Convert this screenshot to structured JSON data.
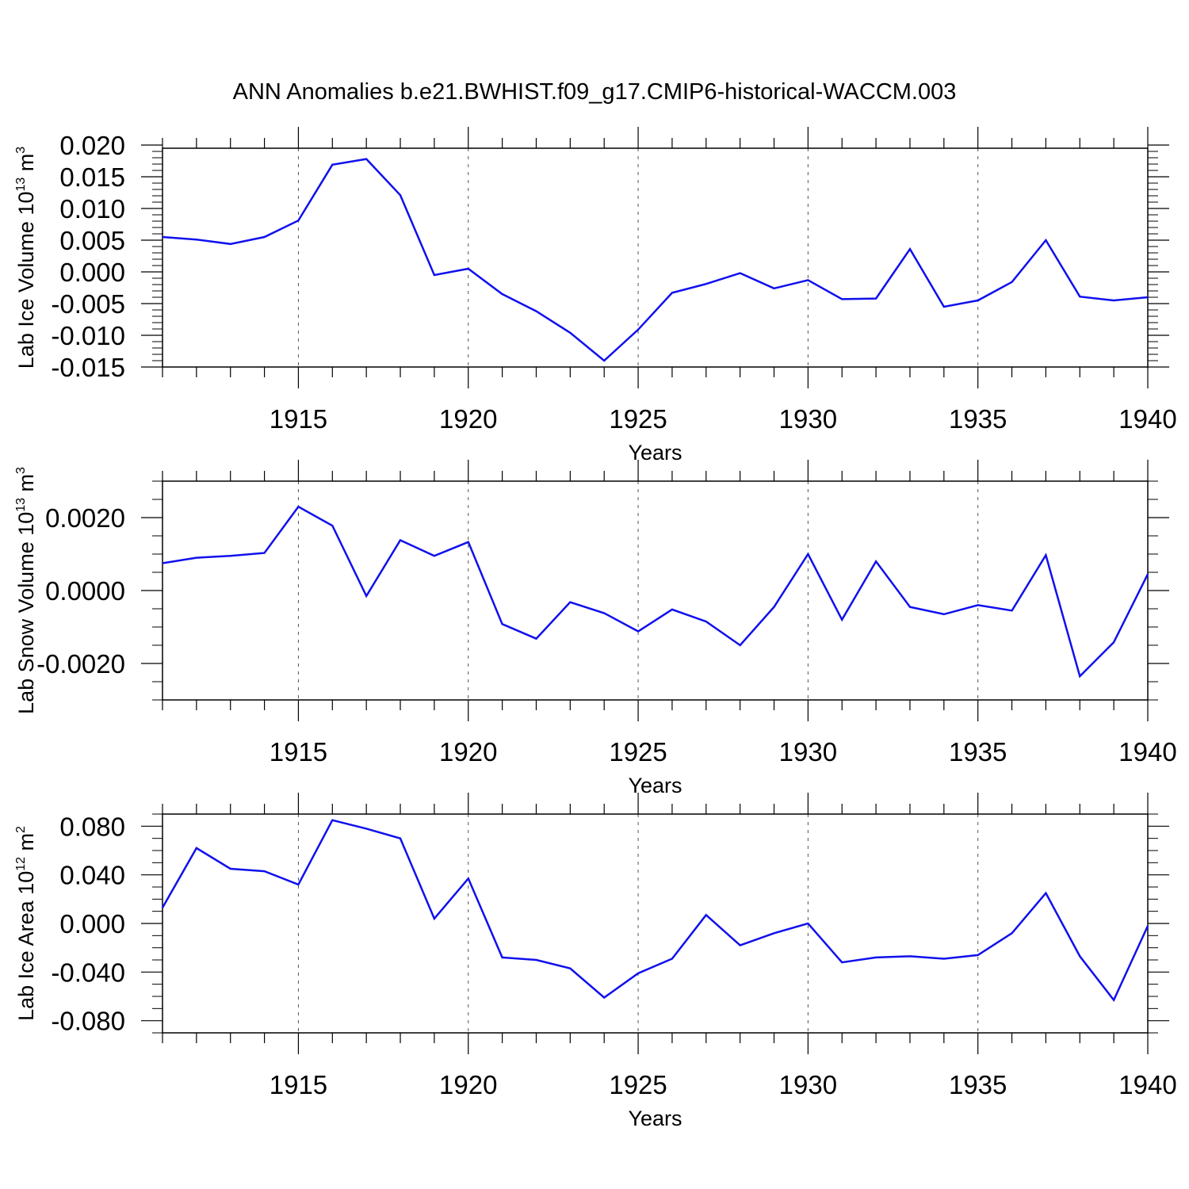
{
  "title": "ANN Anomalies b.e21.BWHIST.f09_g17.CMIP6-historical-WACCM.003",
  "colors": {
    "line": "#1010ee",
    "axis": "#000000",
    "grid": "#555555"
  },
  "chart_data": [
    {
      "type": "line",
      "xlabel": "Years",
      "ylabel": {
        "text": "Lab Ice Volume 10",
        "exp": "13",
        "unit": "m",
        "unit_exp": "3"
      },
      "xlim": [
        1911,
        1940
      ],
      "ylim": [
        -0.015,
        0.0195
      ],
      "x_ticks": [
        1915,
        1920,
        1925,
        1930,
        1935,
        1940
      ],
      "y_ticks": [
        0.02,
        0.015,
        0.01,
        0.005,
        0.0,
        -0.005,
        -0.01,
        -0.015
      ],
      "y_tick_labels": [
        "0.020",
        "0.015",
        "0.010",
        "0.005",
        "0.000",
        "-0.005",
        "-0.010",
        "-0.015"
      ],
      "y_minor_step": 0.001,
      "grid": "vertical dashed at major x ticks",
      "series": [
        {
          "x": [
            1911,
            1912,
            1913,
            1914,
            1915,
            1916,
            1917,
            1918,
            1919,
            1920,
            1921,
            1922,
            1923,
            1924,
            1925,
            1926,
            1927,
            1928,
            1929,
            1930,
            1931,
            1932,
            1933,
            1934,
            1935,
            1936,
            1937,
            1938,
            1939,
            1940
          ],
          "values": [
            0.0055,
            0.0051,
            0.0044,
            0.0055,
            0.0081,
            0.0169,
            0.0178,
            0.0121,
            -0.0005,
            0.0005,
            -0.0035,
            -0.0062,
            -0.0096,
            -0.014,
            -0.0091,
            -0.0033,
            -0.0019,
            -0.0002,
            -0.0026,
            -0.0013,
            -0.0043,
            -0.0042,
            0.0036,
            -0.0055,
            -0.0045,
            -0.0016,
            0.005,
            -0.0039,
            -0.0045,
            -0.004
          ]
        }
      ]
    },
    {
      "type": "line",
      "xlabel": "Years",
      "ylabel": {
        "text": "Lab Snow Volume 10",
        "exp": "13",
        "unit": "m",
        "unit_exp": "3"
      },
      "xlim": [
        1911,
        1940
      ],
      "ylim": [
        -0.003,
        0.003
      ],
      "x_ticks": [
        1915,
        1920,
        1925,
        1930,
        1935,
        1940
      ],
      "y_ticks": [
        0.002,
        0.0,
        -0.002
      ],
      "y_tick_labels": [
        "0.0020",
        "0.0000",
        "-0.0020"
      ],
      "y_minor_step": 0.0005,
      "grid": "vertical dashed at major x ticks",
      "series": [
        {
          "x": [
            1911,
            1912,
            1913,
            1914,
            1915,
            1916,
            1917,
            1918,
            1919,
            1920,
            1921,
            1922,
            1923,
            1924,
            1925,
            1926,
            1927,
            1928,
            1929,
            1930,
            1931,
            1932,
            1933,
            1934,
            1935,
            1936,
            1937,
            1938,
            1939,
            1940
          ],
          "values": [
            0.00075,
            0.0009,
            0.00095,
            0.00103,
            0.0023,
            0.00178,
            -0.00015,
            0.00138,
            0.00095,
            0.00133,
            -0.00092,
            -0.00132,
            -0.00032,
            -0.00062,
            -0.00112,
            -0.00052,
            -0.00085,
            -0.0015,
            -0.00045,
            0.001,
            -0.0008,
            0.0008,
            -0.00045,
            -0.00065,
            -0.0004,
            -0.00055,
            0.00097,
            -0.00235,
            -0.00142,
            0.00045
          ]
        }
      ]
    },
    {
      "type": "line",
      "xlabel": "Years",
      "ylabel": {
        "text": "Lab Ice Area 10",
        "exp": "12",
        "unit": "m",
        "unit_exp": "2"
      },
      "xlim": [
        1911,
        1940
      ],
      "ylim": [
        -0.09,
        0.09
      ],
      "x_ticks": [
        1915,
        1920,
        1925,
        1930,
        1935,
        1940
      ],
      "y_ticks": [
        0.08,
        0.04,
        0.0,
        -0.04,
        -0.08
      ],
      "y_tick_labels": [
        "0.080",
        "0.040",
        "0.000",
        "-0.040",
        "-0.080"
      ],
      "y_minor_step": 0.01,
      "grid": "vertical dashed at major x ticks",
      "series": [
        {
          "x": [
            1911,
            1912,
            1913,
            1914,
            1915,
            1916,
            1917,
            1918,
            1919,
            1920,
            1921,
            1922,
            1923,
            1924,
            1925,
            1926,
            1927,
            1928,
            1929,
            1930,
            1931,
            1932,
            1933,
            1934,
            1935,
            1936,
            1937,
            1938,
            1939,
            1940
          ],
          "values": [
            0.013,
            0.062,
            0.045,
            0.043,
            0.032,
            0.085,
            0.078,
            0.07,
            0.004,
            0.037,
            -0.028,
            -0.03,
            -0.037,
            -0.061,
            -0.041,
            -0.029,
            0.007,
            -0.018,
            -0.008,
            0.0,
            -0.032,
            -0.028,
            -0.027,
            -0.029,
            -0.026,
            -0.008,
            0.025,
            -0.027,
            -0.063,
            -0.002
          ]
        }
      ]
    }
  ]
}
